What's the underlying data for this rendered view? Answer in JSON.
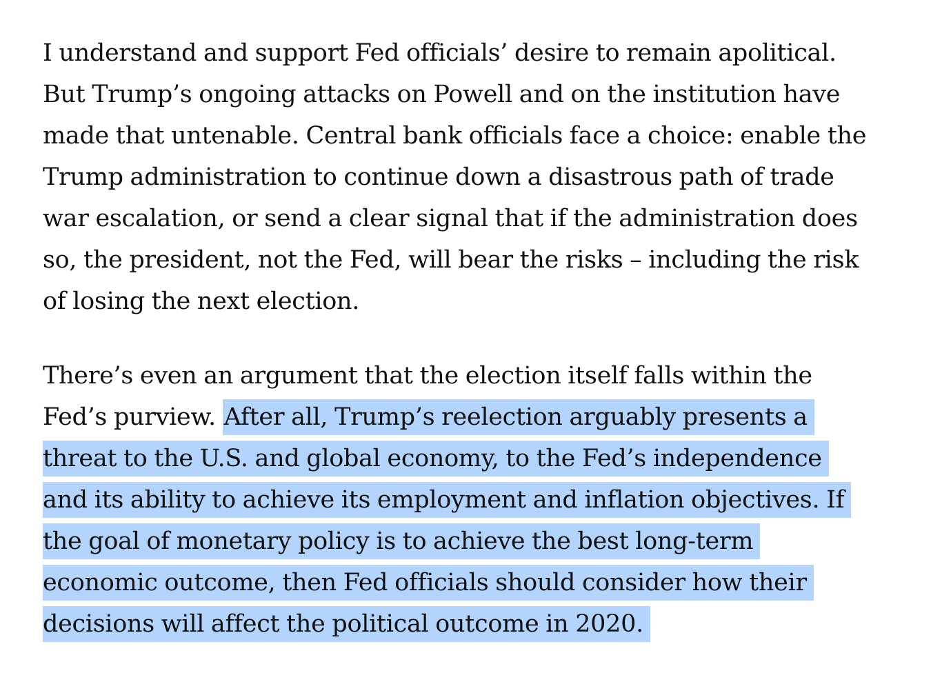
{
  "article": {
    "paragraph_1": {
      "lines": [
        "I understand and support Fed officials’ desire to remain apolitical.",
        "But Trump’s ongoing attacks on Powell and on the institution have",
        "made that untenable. Central bank officials face a choice: enable the",
        "Trump administration to continue down a disastrous path of trade",
        "war escalation, or send a clear signal that if the administration does",
        "so, the president, not the Fed, will bear the risks – including the risk",
        "of losing the next election."
      ]
    },
    "paragraph_2": {
      "line_1": "There’s even an argument that the election itself falls within the",
      "line_2_plain": "Fed’s purview.",
      "line_2_selected": "After all, Trump’s reelection arguably presents a",
      "selected_lines": [
        "threat to the U.S. and global economy, to the Fed’s independence",
        "and its ability to achieve its employment and inflation objectives. If",
        "the goal of monetary policy is to achieve the best long-term",
        "economic outcome, then Fed officials should consider how their",
        "decisions will affect the political outcome in 2020."
      ]
    }
  },
  "colors": {
    "text": "#111111",
    "selection_highlight": "#b3d4fd",
    "background": "#ffffff"
  }
}
